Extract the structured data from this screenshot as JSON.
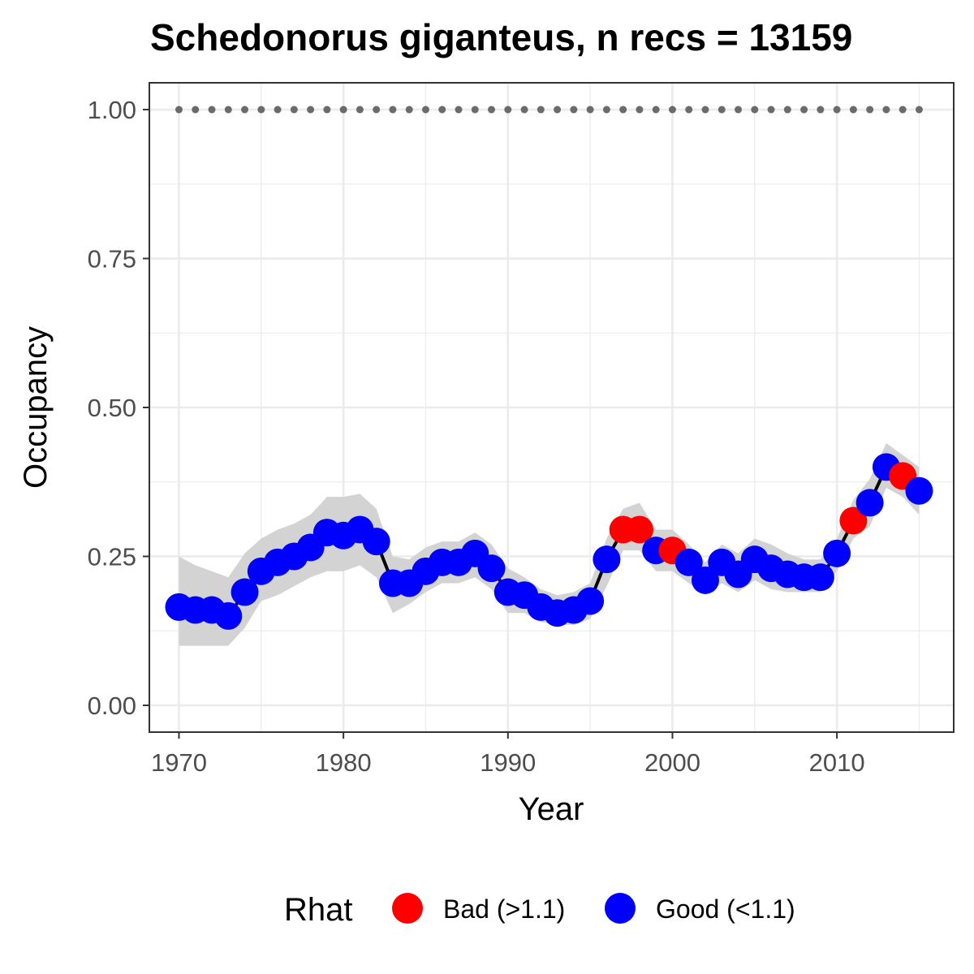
{
  "chart_data": {
    "type": "line",
    "title": "Schedonorus giganteus, n recs = 13159",
    "xlabel": "Year",
    "ylabel": "Occupancy",
    "xlim": [
      1968.2,
      2017.1
    ],
    "ylim": [
      -0.045,
      1.045
    ],
    "x_ticks": [
      1970,
      1980,
      1990,
      2000,
      2010
    ],
    "x_tick_labels": [
      "1970",
      "1980",
      "1990",
      "2000",
      "2010"
    ],
    "y_ticks": [
      0,
      0.25,
      0.5,
      0.75,
      1.0
    ],
    "y_tick_labels": [
      "0.00",
      "0.25",
      "0.50",
      "0.75",
      "1.00"
    ],
    "grid": true,
    "legend": {
      "title": "Rhat",
      "position": "bottom",
      "entries": [
        {
          "label": "Bad (>1.1)",
          "color": "#ff0000"
        },
        {
          "label": "Good (<1.1)",
          "color": "#0000ff"
        }
      ]
    },
    "colors": {
      "bad": "#ff0000",
      "good": "#0000ff",
      "ribbon": "#d3d3d3",
      "line": "#000000",
      "reference": "#6b6b6b"
    },
    "x": [
      1970,
      1971,
      1972,
      1973,
      1974,
      1975,
      1976,
      1977,
      1978,
      1979,
      1980,
      1981,
      1982,
      1983,
      1984,
      1985,
      1986,
      1987,
      1988,
      1989,
      1990,
      1991,
      1992,
      1993,
      1994,
      1995,
      1996,
      1997,
      1998,
      1999,
      2000,
      2001,
      2002,
      2003,
      2004,
      2005,
      2006,
      2007,
      2008,
      2009,
      2010,
      2011,
      2012,
      2013,
      2014,
      2015
    ],
    "series": [
      {
        "values": [
          0.165,
          0.16,
          0.16,
          0.15,
          0.19,
          0.225,
          0.24,
          0.25,
          0.265,
          0.29,
          0.285,
          0.295,
          0.275,
          0.205,
          0.205,
          0.225,
          0.24,
          0.24,
          0.255,
          0.23,
          0.19,
          0.185,
          0.165,
          0.155,
          0.16,
          0.175,
          0.245,
          0.295,
          0.295,
          0.26,
          0.26,
          0.24,
          0.21,
          0.24,
          0.22,
          0.245,
          0.23,
          0.22,
          0.215,
          0.215,
          0.255,
          0.31,
          0.34,
          0.4,
          0.385,
          0.36
        ],
        "rhat": [
          "good",
          "good",
          "good",
          "good",
          "good",
          "good",
          "good",
          "good",
          "good",
          "good",
          "good",
          "good",
          "good",
          "good",
          "good",
          "good",
          "good",
          "good",
          "good",
          "good",
          "good",
          "good",
          "good",
          "good",
          "good",
          "good",
          "good",
          "bad",
          "bad",
          "good",
          "bad",
          "good",
          "good",
          "good",
          "good",
          "good",
          "good",
          "good",
          "good",
          "good",
          "good",
          "bad",
          "good",
          "good",
          "bad",
          "good"
        ],
        "lower": [
          0.1,
          0.1,
          0.1,
          0.1,
          0.13,
          0.175,
          0.185,
          0.2,
          0.215,
          0.225,
          0.225,
          0.235,
          0.215,
          0.155,
          0.17,
          0.19,
          0.205,
          0.205,
          0.215,
          0.195,
          0.155,
          0.155,
          0.14,
          0.135,
          0.135,
          0.145,
          0.2,
          0.26,
          0.26,
          0.225,
          0.225,
          0.205,
          0.185,
          0.205,
          0.19,
          0.21,
          0.195,
          0.19,
          0.19,
          0.19,
          0.225,
          0.28,
          0.3,
          0.365,
          0.35,
          0.32
        ],
        "upper": [
          0.25,
          0.235,
          0.225,
          0.215,
          0.255,
          0.28,
          0.295,
          0.305,
          0.32,
          0.35,
          0.35,
          0.355,
          0.33,
          0.25,
          0.245,
          0.265,
          0.275,
          0.275,
          0.29,
          0.27,
          0.23,
          0.215,
          0.195,
          0.185,
          0.19,
          0.205,
          0.28,
          0.33,
          0.34,
          0.295,
          0.295,
          0.27,
          0.24,
          0.27,
          0.255,
          0.28,
          0.27,
          0.255,
          0.245,
          0.245,
          0.28,
          0.345,
          0.38,
          0.44,
          0.42,
          0.4
        ]
      }
    ],
    "reference_line": {
      "y": 1.0,
      "x_range": [
        1970,
        2015
      ],
      "style": "dotted"
    }
  }
}
